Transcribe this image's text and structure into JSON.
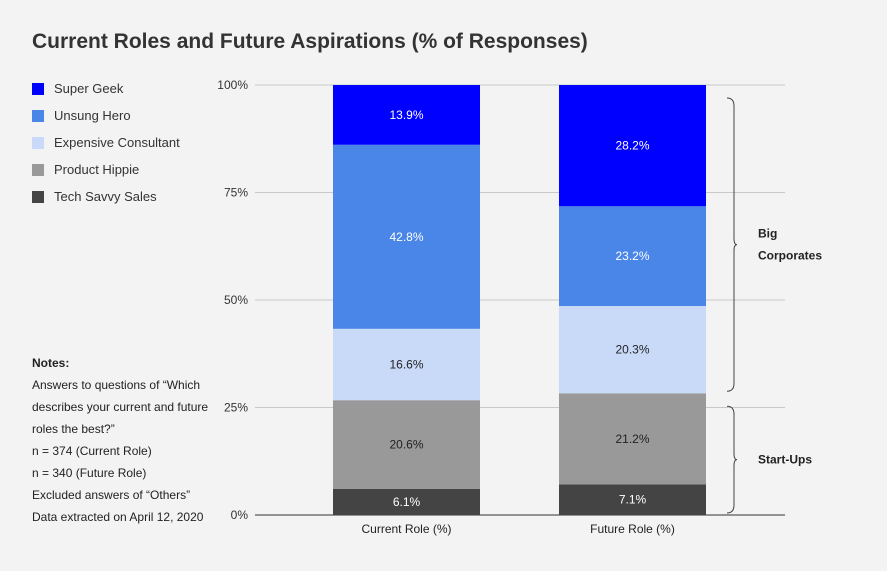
{
  "chart_data": {
    "type": "bar",
    "stacked": true,
    "title": "Current Roles and Future Aspirations (% of Responses)",
    "categories": [
      "Current Role (%)",
      "Future Role (%)"
    ],
    "yticks": [
      "0%",
      "25%",
      "50%",
      "75%",
      "100%"
    ],
    "ylim": [
      0,
      100
    ],
    "series": [
      {
        "name": "Tech Savvy Sales",
        "color": "#444444",
        "values": [
          6.1,
          7.1
        ],
        "labels": [
          "6.1%",
          "7.1%"
        ],
        "text_color": "#ffffff"
      },
      {
        "name": "Product Hippie",
        "color": "#999999",
        "values": [
          20.6,
          21.2
        ],
        "labels": [
          "20.6%",
          "21.2%"
        ],
        "text_color": "#222222"
      },
      {
        "name": "Expensive Consultant",
        "color": "#c9daf8",
        "values": [
          16.6,
          20.3
        ],
        "labels": [
          "16.6%",
          "20.3%"
        ],
        "text_color": "#222222"
      },
      {
        "name": "Unsung Hero",
        "color": "#4a86e8",
        "values": [
          42.8,
          23.2
        ],
        "labels": [
          "42.8%",
          "23.2%"
        ],
        "text_color": "#ffffff"
      },
      {
        "name": "Super Geek",
        "color": "#0000ff",
        "values": [
          13.9,
          28.2
        ],
        "labels": [
          "13.9%",
          "28.2%"
        ],
        "text_color": "#ffffff"
      }
    ],
    "legend_position": "left",
    "grid": true,
    "brackets": [
      {
        "label_lines": [
          "Big",
          "Corporates"
        ],
        "range": [
          28.3,
          100
        ]
      },
      {
        "label_lines": [
          "Start-Ups"
        ],
        "range": [
          0,
          28.3
        ]
      }
    ]
  },
  "legend": [
    {
      "label": "Super Geek",
      "color": "#0000ff"
    },
    {
      "label": "Unsung Hero",
      "color": "#4a86e8"
    },
    {
      "label": "Expensive Consultant",
      "color": "#c9daf8"
    },
    {
      "label": "Product Hippie",
      "color": "#999999"
    },
    {
      "label": "Tech Savvy Sales",
      "color": "#444444"
    }
  ],
  "notes": {
    "heading": "Notes:",
    "lines": [
      "Answers to questions of “Which describes your current and future roles the best?”",
      "n = 374 (Current Role)",
      "n = 340 (Future Role)",
      "Excluded answers of “Others”",
      "Data extracted on April 12, 2020"
    ]
  }
}
